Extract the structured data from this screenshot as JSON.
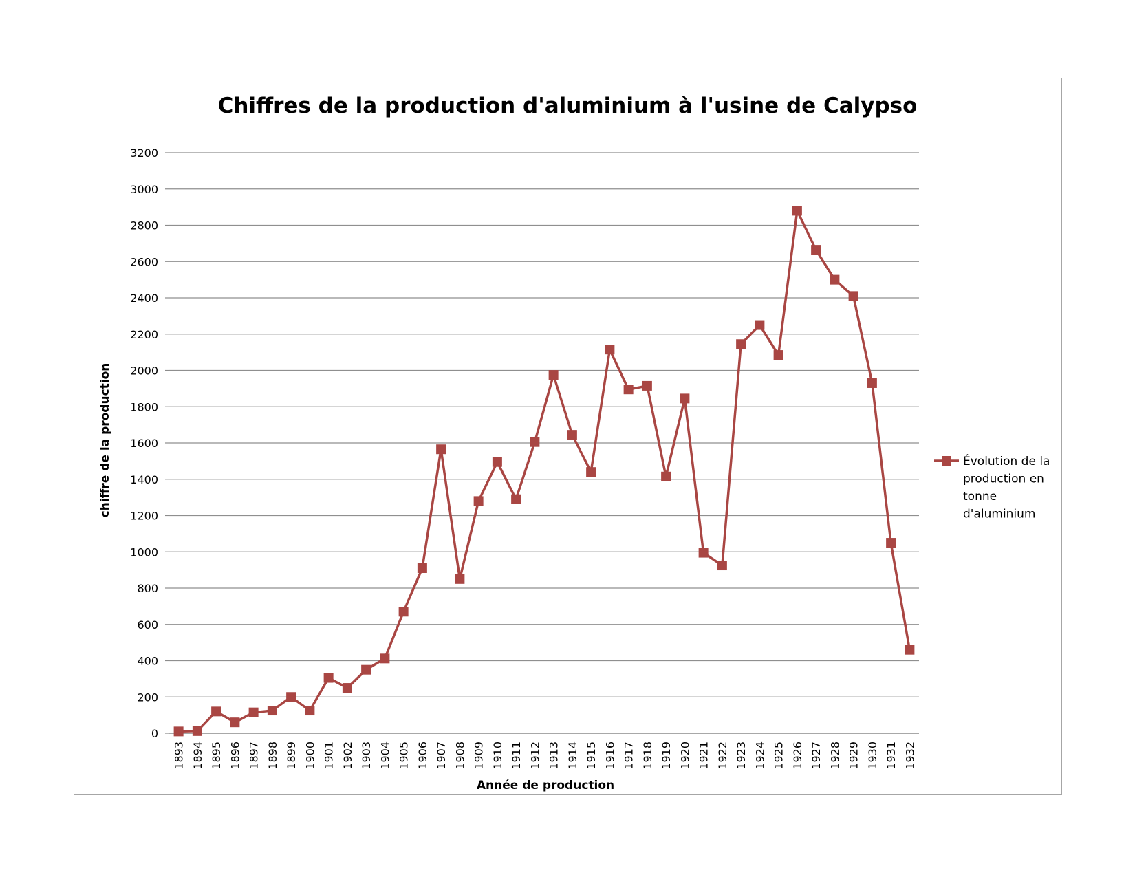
{
  "chart_data": {
    "type": "line",
    "title": "Chiffres de la production d'aluminium à l'usine de Calypso",
    "xlabel": "Année de production",
    "ylabel": "chiffre de la production",
    "ylim": [
      0,
      3200
    ],
    "ytick_step": 200,
    "grid": true,
    "legend_position": "right",
    "categories": [
      "1893",
      "1894",
      "1895",
      "1896",
      "1897",
      "1898",
      "1899",
      "1900",
      "1901",
      "1902",
      "1903",
      "1904",
      "1905",
      "1906",
      "1907",
      "1908",
      "1909",
      "1910",
      "1911",
      "1912",
      "1913",
      "1914",
      "1915",
      "1916",
      "1917",
      "1918",
      "1919",
      "1920",
      "1921",
      "1922",
      "1923",
      "1924",
      "1925",
      "1926",
      "1927",
      "1928",
      "1929",
      "1930",
      "1931",
      "1932"
    ],
    "series": [
      {
        "name": "Évolution de la production en tonne d'aluminium",
        "legend_lines": [
          "Évolution de la",
          "production en",
          "tonne",
          "d'aluminium"
        ],
        "color": "#a94643",
        "marker": "square",
        "values": [
          10,
          12,
          120,
          60,
          115,
          125,
          200,
          125,
          305,
          250,
          350,
          412,
          670,
          910,
          1565,
          850,
          1280,
          1495,
          1290,
          1605,
          1975,
          1645,
          1440,
          2115,
          1895,
          1915,
          1415,
          1845,
          995,
          925,
          2145,
          2250,
          2085,
          2880,
          2665,
          2500,
          2410,
          1930,
          1050,
          460
        ]
      }
    ]
  }
}
